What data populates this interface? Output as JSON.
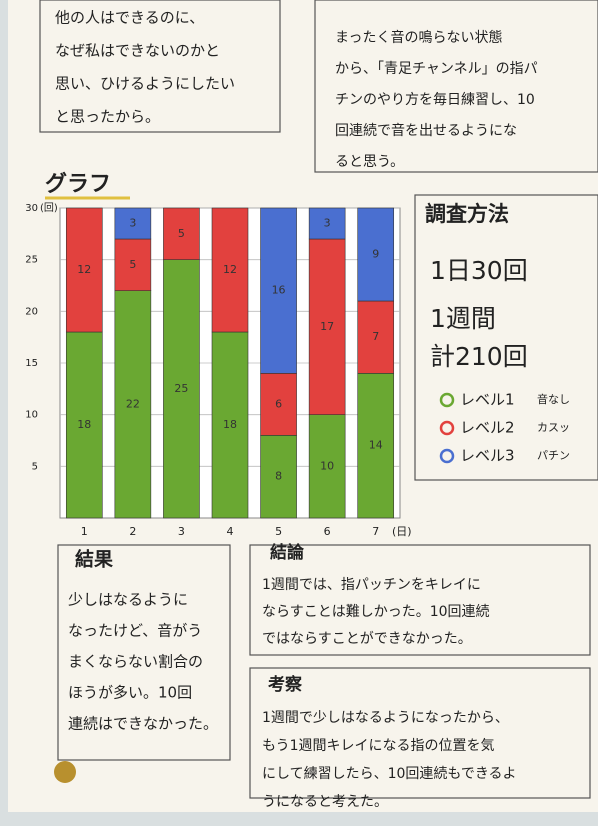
{
  "motivation": {
    "lines": [
      "他の人はできるのに、",
      "なぜ私はできないのかと",
      "思い、ひけるようにしたい",
      "と思ったから。"
    ]
  },
  "hypothesis": {
    "lines": [
      "まったく音の鳴らない状態",
      "から、「青足チャンネル」の指パ",
      "チンのやり方を毎日練習し、10",
      "回連続で音を出せるようにな",
      "ると思う。"
    ]
  },
  "chart_data": {
    "type": "stacked_bar",
    "title": "グラフ",
    "x_unit": "(日)",
    "y_unit": "(回)",
    "categories": [
      "1",
      "2",
      "3",
      "4",
      "5",
      "6",
      "7"
    ],
    "series": [
      {
        "name": "レベル1",
        "description": "音なし",
        "color": "#6aa832",
        "values": [
          18,
          22,
          25,
          18,
          8,
          10,
          14
        ]
      },
      {
        "name": "レベル2",
        "description": "カスッ",
        "color": "#e2413e",
        "values": [
          12,
          5,
          5,
          12,
          6,
          17,
          7
        ]
      },
      {
        "name": "レベル3",
        "description": "パチン",
        "color": "#4a6fd0",
        "values": [
          null,
          3,
          null,
          null,
          16,
          3,
          9
        ]
      }
    ],
    "ylim": [
      0,
      30
    ],
    "yticks": [
      5,
      10,
      15,
      20,
      25,
      30
    ],
    "grid": true
  },
  "method": {
    "title": "調査方法",
    "lines": [
      "1日30回",
      "1週間",
      "計210回"
    ]
  },
  "result": {
    "title": "結果",
    "lines": [
      "少しはなるように",
      "なったけど、音がう",
      "まくならない割合の",
      "ほうが多い。10回",
      "連続はできなかった。"
    ]
  },
  "conclusion": {
    "title": "結論",
    "lines": [
      "1週間では、指パッチンをキレイに",
      "ならすことは難しかった。10回連続",
      "ではならすことができなかった。"
    ]
  },
  "consideration": {
    "title": "考察",
    "lines": [
      "1週間で少しはなるようになったから、",
      "もう1週間キレイになる指の位置を気",
      "にして練習したら、10回連続もできるよ",
      "うになると考えた。"
    ]
  }
}
